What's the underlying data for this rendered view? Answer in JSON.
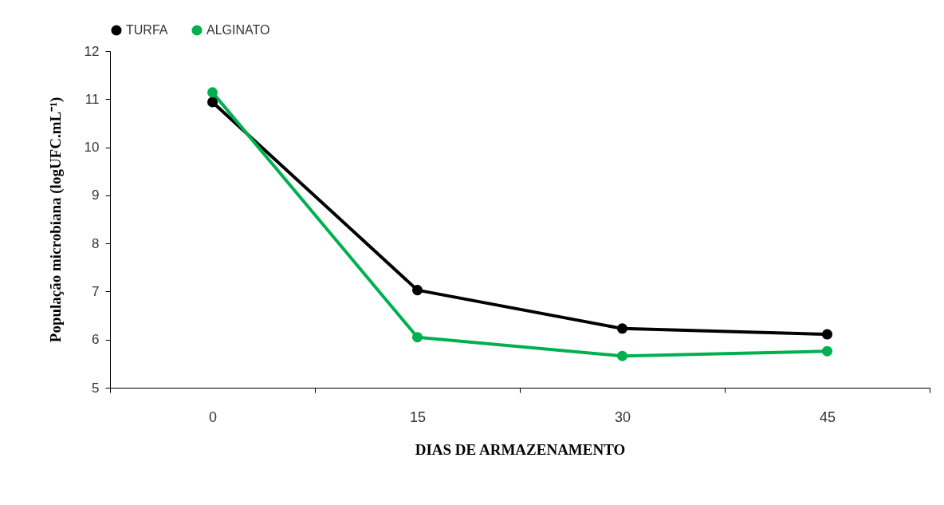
{
  "chart_data": {
    "type": "line",
    "xlabel": "DIAS DE ARMAZENAMENTO",
    "ylabel": "População microbiana (logUFC.mL⁻¹)",
    "categories": [
      "0",
      "15",
      "30",
      "45"
    ],
    "series": [
      {
        "name": "TURFA",
        "color": "#000000",
        "values": [
          10.94,
          7.03,
          6.23,
          6.11
        ]
      },
      {
        "name": "ALGINATO",
        "color": "#00b050",
        "values": [
          11.14,
          6.05,
          5.66,
          5.76
        ]
      }
    ],
    "ylim": [
      5,
      12
    ],
    "yticks": [
      5,
      6,
      7,
      8,
      9,
      10,
      11,
      12
    ],
    "grid": false,
    "legend": "top",
    "marker": "circle",
    "line_style": "solid"
  }
}
